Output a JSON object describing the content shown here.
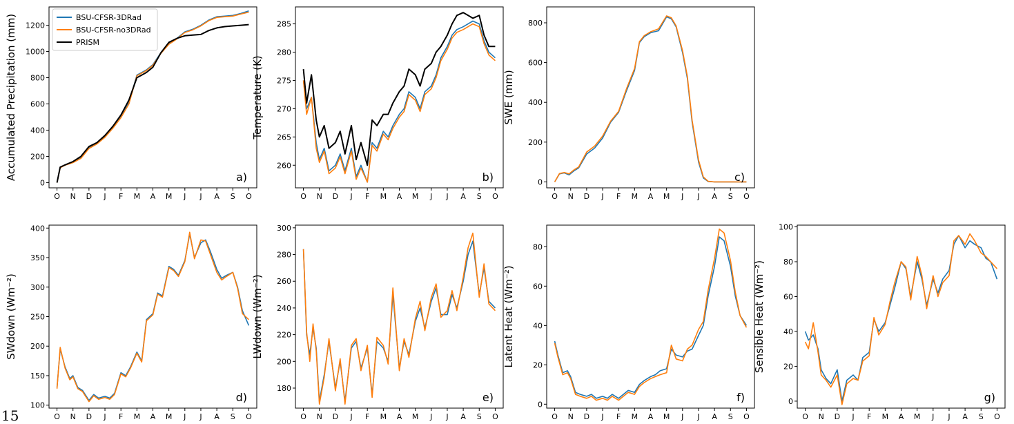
{
  "page_number": "15",
  "colors": {
    "series_3drad": "#1f77b4",
    "series_no3drad": "#ff7f0e",
    "series_prism": "#000000"
  },
  "month_ticks": [
    "O",
    "N",
    "D",
    "J",
    "F",
    "M",
    "A",
    "M",
    "J",
    "J",
    "A",
    "S",
    "O"
  ],
  "chart_data": [
    {
      "type": "line",
      "panel_label": "a)",
      "ylabel": "Accumulated Precipitation (mm)",
      "ylim": [
        -40,
        1340
      ],
      "yticks": [
        0,
        200,
        400,
        600,
        800,
        1000,
        1200
      ],
      "legend": "top-left",
      "x": [
        0,
        0.2,
        0.5,
        1,
        1.5,
        2,
        2.5,
        3,
        3.5,
        4,
        4.5,
        5,
        5.3,
        5.6,
        6,
        6.5,
        7,
        7.5,
        8,
        8.5,
        9,
        9.5,
        10,
        10.5,
        11,
        11.5,
        12
      ],
      "series": [
        {
          "name": "BSU-CFSR-3DRad",
          "values": [
            0,
            115,
            135,
            155,
            190,
            265,
            300,
            350,
            420,
            500,
            610,
            820,
            840,
            860,
            900,
            990,
            1060,
            1100,
            1150,
            1170,
            1200,
            1240,
            1265,
            1270,
            1275,
            1290,
            1310
          ]
        },
        {
          "name": "BSU-CFSR-no3DRad",
          "values": [
            0,
            113,
            133,
            152,
            185,
            260,
            295,
            345,
            415,
            495,
            600,
            815,
            835,
            855,
            895,
            985,
            1055,
            1095,
            1145,
            1165,
            1195,
            1235,
            1260,
            1265,
            1270,
            1285,
            1300
          ]
        },
        {
          "name": "PRISM",
          "values": [
            0,
            118,
            135,
            160,
            200,
            275,
            305,
            360,
            430,
            515,
            630,
            800,
            820,
            840,
            880,
            990,
            1070,
            1100,
            1120,
            1125,
            1130,
            1160,
            1180,
            1190,
            1195,
            1200,
            1205
          ]
        }
      ]
    },
    {
      "type": "line",
      "panel_label": "b)",
      "ylabel": "Temperature (K)",
      "ylim": [
        256,
        288
      ],
      "yticks": [
        260,
        265,
        270,
        275,
        280,
        285
      ],
      "x": [
        0,
        0.2,
        0.5,
        0.8,
        1,
        1.3,
        1.6,
        2,
        2.3,
        2.6,
        3,
        3.3,
        3.6,
        4,
        4.3,
        4.6,
        5,
        5.3,
        5.6,
        6,
        6.3,
        6.6,
        7,
        7.3,
        7.6,
        8,
        8.3,
        8.6,
        9,
        9.3,
        9.6,
        10,
        10.3,
        10.6,
        11,
        11.3,
        11.6,
        12
      ],
      "series": [
        {
          "name": "BSU-CFSR-3DRad",
          "values": [
            275,
            270,
            272,
            264,
            261,
            263,
            259,
            260,
            262,
            259,
            263,
            258,
            260,
            257,
            264,
            263,
            266,
            265,
            267,
            269,
            270,
            273,
            272,
            270,
            273,
            274,
            276,
            279,
            281,
            283,
            284,
            284.5,
            285,
            285.5,
            285,
            282,
            280,
            279
          ]
        },
        {
          "name": "BSU-CFSR-no3DRad",
          "values": [
            275,
            269,
            272,
            263,
            260.5,
            262.5,
            258.5,
            259.5,
            261.5,
            258.5,
            262.5,
            257.5,
            259.5,
            257,
            263.5,
            262.5,
            265.5,
            264.5,
            266.5,
            268.5,
            269.5,
            272.5,
            271.5,
            269.5,
            272.5,
            273.5,
            275.5,
            278.5,
            280.5,
            282.5,
            283.5,
            284,
            284.5,
            285,
            284.5,
            281.5,
            279.5,
            278.5
          ]
        },
        {
          "name": "PRISM",
          "values": [
            277,
            271,
            276,
            268,
            265,
            267,
            263,
            264,
            266,
            262,
            267,
            261,
            264,
            260,
            268,
            267,
            269,
            269,
            271,
            273,
            274,
            277,
            276,
            274,
            277,
            278,
            280,
            281,
            283,
            285,
            286.5,
            287,
            286.5,
            286,
            286.5,
            283,
            281,
            281
          ]
        }
      ]
    },
    {
      "type": "line",
      "panel_label": "c)",
      "ylabel": "SWE (mm)",
      "ylim": [
        -30,
        880
      ],
      "yticks": [
        0,
        200,
        400,
        600,
        800
      ],
      "x": [
        0,
        0.3,
        0.6,
        0.9,
        1.2,
        1.5,
        2,
        2.5,
        3,
        3.5,
        4,
        4.5,
        5,
        5.3,
        5.6,
        6,
        6.5,
        7,
        7.3,
        7.6,
        8,
        8.3,
        8.6,
        9,
        9.3,
        9.6,
        10,
        10.5,
        11,
        11.5,
        12
      ],
      "series": [
        {
          "name": "BSU-CFSR-3DRad",
          "values": [
            0,
            40,
            45,
            35,
            55,
            70,
            140,
            170,
            220,
            300,
            350,
            460,
            560,
            700,
            730,
            750,
            760,
            830,
            820,
            780,
            650,
            520,
            300,
            100,
            20,
            2,
            0,
            0,
            0,
            0,
            0
          ]
        },
        {
          "name": "BSU-CFSR-no3DRad",
          "values": [
            0,
            42,
            47,
            40,
            60,
            75,
            150,
            180,
            230,
            305,
            355,
            470,
            570,
            705,
            735,
            755,
            770,
            835,
            825,
            785,
            660,
            530,
            310,
            110,
            25,
            3,
            0,
            0,
            0,
            0,
            0
          ]
        }
      ]
    },
    {
      "type": "line",
      "panel_label": "d)",
      "ylabel": "SWdown (Wm⁻²)",
      "ylim": [
        95,
        405
      ],
      "yticks": [
        100,
        150,
        200,
        250,
        300,
        350,
        400
      ],
      "x": [
        0,
        0.2,
        0.5,
        0.8,
        1,
        1.3,
        1.6,
        2,
        2.3,
        2.6,
        3,
        3.3,
        3.6,
        4,
        4.3,
        4.6,
        5,
        5.3,
        5.6,
        6,
        6.3,
        6.6,
        7,
        7.3,
        7.6,
        8,
        8.3,
        8.6,
        9,
        9.3,
        9.6,
        10,
        10.3,
        10.6,
        11,
        11.3,
        11.6,
        12
      ],
      "series": [
        {
          "name": "BSU-CFSR-3DRad",
          "values": [
            130,
            195,
            165,
            145,
            150,
            130,
            125,
            108,
            118,
            112,
            115,
            112,
            120,
            155,
            150,
            165,
            190,
            175,
            245,
            255,
            290,
            285,
            335,
            330,
            320,
            345,
            390,
            350,
            375,
            380,
            360,
            330,
            315,
            320,
            325,
            300,
            260,
            235
          ]
        },
        {
          "name": "BSU-CFSR-no3DRad",
          "values": [
            128,
            198,
            163,
            143,
            148,
            128,
            123,
            106,
            116,
            110,
            113,
            110,
            118,
            153,
            148,
            163,
            188,
            173,
            243,
            253,
            288,
            283,
            333,
            328,
            318,
            343,
            393,
            348,
            380,
            378,
            355,
            325,
            312,
            318,
            325,
            298,
            255,
            245
          ]
        }
      ]
    },
    {
      "type": "line",
      "panel_label": "e)",
      "ylabel": "LWdown (Wm⁻²)",
      "ylim": [
        165,
        302
      ],
      "yticks": [
        180,
        200,
        220,
        240,
        260,
        280,
        300
      ],
      "x": [
        0,
        0.2,
        0.4,
        0.6,
        0.8,
        1,
        1.3,
        1.6,
        2,
        2.3,
        2.6,
        3,
        3.3,
        3.6,
        4,
        4.3,
        4.6,
        5,
        5.3,
        5.6,
        6,
        6.3,
        6.6,
        7,
        7.3,
        7.6,
        8,
        8.3,
        8.6,
        9,
        9.3,
        9.6,
        10,
        10.3,
        10.6,
        11,
        11.3,
        11.6,
        12
      ],
      "series": [
        {
          "name": "BSU-CFSR-3DRad",
          "values": [
            284,
            220,
            205,
            225,
            210,
            170,
            190,
            215,
            180,
            200,
            170,
            210,
            215,
            195,
            210,
            175,
            215,
            210,
            200,
            250,
            195,
            215,
            205,
            230,
            240,
            225,
            245,
            255,
            235,
            235,
            250,
            240,
            260,
            280,
            290,
            250,
            270,
            245,
            240
          ]
        },
        {
          "name": "BSU-CFSR-no3DRad",
          "values": [
            284,
            222,
            200,
            228,
            208,
            168,
            188,
            217,
            178,
            202,
            168,
            212,
            217,
            193,
            212,
            173,
            218,
            212,
            198,
            255,
            193,
            217,
            203,
            232,
            245,
            223,
            248,
            258,
            233,
            238,
            253,
            238,
            263,
            285,
            296,
            248,
            273,
            243,
            238
          ]
        }
      ]
    },
    {
      "type": "line",
      "panel_label": "f)",
      "ylabel": "Latent Heat (Wm⁻²)",
      "ylim": [
        -2,
        91
      ],
      "yticks": [
        0,
        20,
        40,
        60,
        80
      ],
      "x": [
        0,
        0.2,
        0.5,
        0.8,
        1,
        1.3,
        1.6,
        2,
        2.3,
        2.6,
        3,
        3.3,
        3.6,
        4,
        4.3,
        4.6,
        5,
        5.3,
        5.6,
        6,
        6.3,
        6.6,
        7,
        7.3,
        7.6,
        8,
        8.3,
        8.6,
        9,
        9.3,
        9.6,
        10,
        10.3,
        10.6,
        11,
        11.3,
        11.6,
        12
      ],
      "series": [
        {
          "name": "BSU-CFSR-3DRad",
          "values": [
            32,
            25,
            16,
            17,
            14,
            6,
            5,
            4,
            5,
            3,
            4,
            3,
            5,
            3,
            5,
            7,
            6,
            10,
            12,
            14,
            15,
            17,
            18,
            28,
            25,
            24,
            27,
            28,
            35,
            40,
            55,
            70,
            85,
            83,
            70,
            55,
            45,
            40
          ]
        },
        {
          "name": "BSU-CFSR-no3DRad",
          "values": [
            31,
            24,
            15,
            16,
            13,
            5,
            4,
            3,
            4,
            2,
            3,
            2,
            4,
            2,
            4,
            6,
            5,
            9,
            11,
            13,
            14,
            15,
            16,
            30,
            23,
            22,
            28,
            30,
            38,
            42,
            58,
            74,
            89,
            87,
            73,
            57,
            45,
            39
          ]
        }
      ]
    },
    {
      "type": "line",
      "panel_label": "g)",
      "ylabel": "Sensible Heat (Wm⁻²)",
      "ylim": [
        -4,
        101
      ],
      "yticks": [
        0,
        20,
        40,
        60,
        80,
        100
      ],
      "x": [
        0,
        0.2,
        0.5,
        0.8,
        1,
        1.3,
        1.6,
        2,
        2.3,
        2.6,
        3,
        3.3,
        3.6,
        4,
        4.3,
        4.6,
        5,
        5.3,
        5.6,
        6,
        6.3,
        6.6,
        7,
        7.3,
        7.6,
        8,
        8.3,
        8.6,
        9,
        9.3,
        9.6,
        10,
        10.3,
        10.6,
        11,
        11.3,
        11.6,
        12
      ],
      "series": [
        {
          "name": "BSU-CFSR-3DRad",
          "values": [
            40,
            35,
            38,
            30,
            18,
            13,
            10,
            18,
            0,
            12,
            15,
            12,
            25,
            28,
            47,
            40,
            45,
            55,
            65,
            80,
            76,
            60,
            80,
            70,
            55,
            70,
            62,
            70,
            75,
            90,
            95,
            88,
            92,
            90,
            88,
            82,
            80,
            70
          ]
        },
        {
          "name": "BSU-CFSR-no3DRad",
          "values": [
            34,
            30,
            45,
            28,
            15,
            12,
            8,
            15,
            -2,
            10,
            13,
            12,
            23,
            26,
            48,
            38,
            44,
            57,
            68,
            80,
            77,
            58,
            83,
            72,
            53,
            72,
            60,
            68,
            72,
            92,
            95,
            90,
            96,
            92,
            85,
            83,
            80,
            76
          ]
        }
      ]
    }
  ]
}
